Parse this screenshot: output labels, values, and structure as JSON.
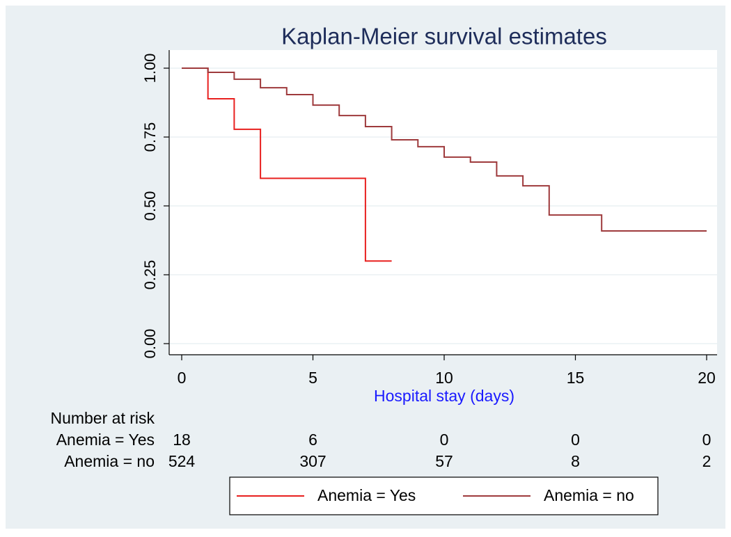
{
  "chart_data": {
    "type": "step",
    "title": "Kaplan-Meier survival estimates",
    "xlabel": "Hospital stay (days)",
    "xlim": [
      0,
      20
    ],
    "ylim": [
      0,
      1
    ],
    "xticks": [
      0,
      5,
      10,
      15,
      20
    ],
    "yticks": [
      {
        "value": 0,
        "label": "0.00"
      },
      {
        "value": 0.25,
        "label": "0.25"
      },
      {
        "value": 0.5,
        "label": "0.50"
      },
      {
        "value": 0.75,
        "label": "0.75"
      },
      {
        "value": 1,
        "label": "1.00"
      }
    ],
    "grid": true,
    "series": [
      {
        "name": "Anemia = Yes",
        "color": "#e8201f",
        "x": [
          0,
          1,
          2,
          3,
          7,
          8
        ],
        "values": [
          1.0,
          0.889,
          0.778,
          0.6,
          0.3,
          0.3
        ]
      },
      {
        "name": "Anemia = no",
        "color": "#9e3a3c",
        "x": [
          0,
          1,
          2,
          3,
          4,
          5,
          6,
          7,
          8,
          9,
          10,
          11,
          12,
          13,
          14,
          16,
          20
        ],
        "values": [
          1.0,
          0.985,
          0.96,
          0.929,
          0.904,
          0.866,
          0.828,
          0.788,
          0.74,
          0.715,
          0.677,
          0.659,
          0.609,
          0.573,
          0.467,
          0.409,
          0.409
        ]
      }
    ],
    "risk_table": {
      "title": "Number at risk",
      "x": [
        0,
        5,
        10,
        15,
        20
      ],
      "rows": [
        [
          18,
          6,
          0,
          0,
          0
        ],
        [
          524,
          307,
          57,
          8,
          2
        ]
      ]
    }
  }
}
